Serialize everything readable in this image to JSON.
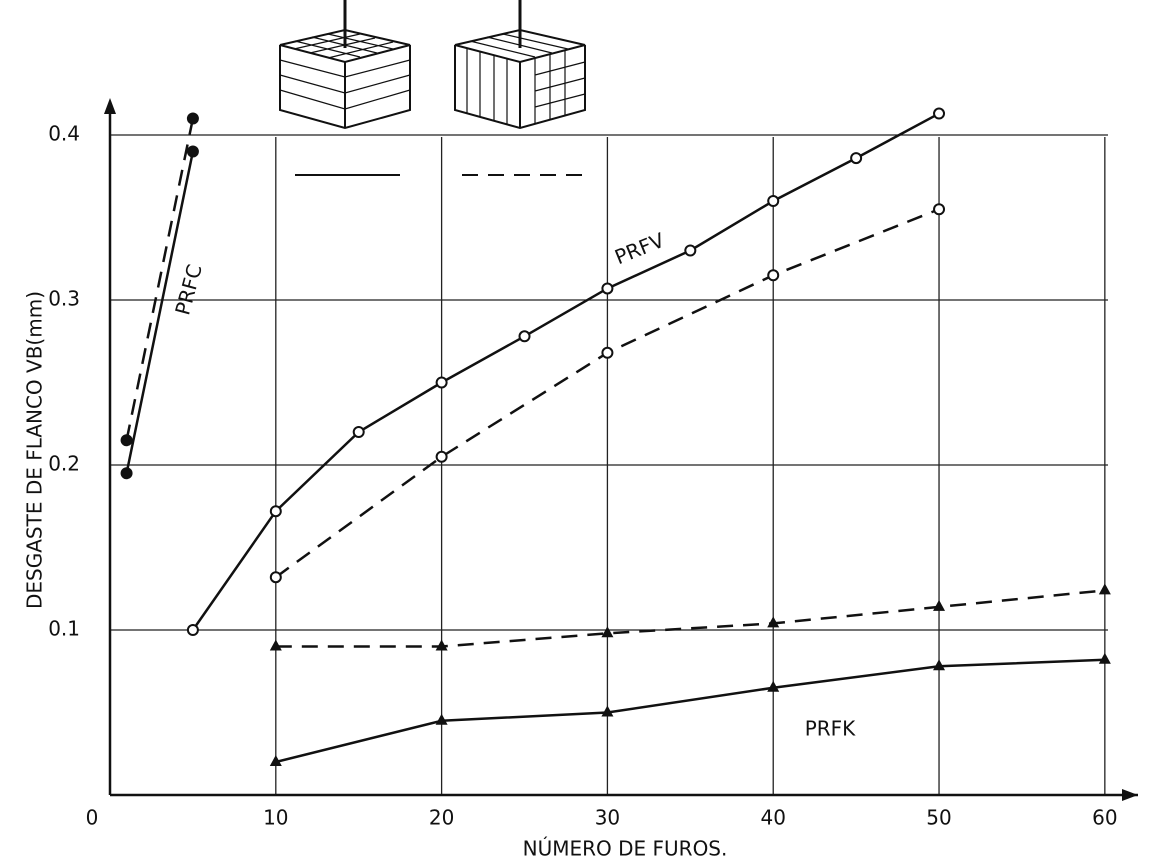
{
  "chart_data": {
    "type": "line",
    "x_label": "NÚMERO DE FUROS.",
    "y_label": "DESGASTE DE FLANCO VB(mm)",
    "xlim": [
      0,
      62
    ],
    "xticks": [
      0,
      10,
      20,
      30,
      40,
      50,
      60
    ],
    "ylim": [
      0,
      0.42
    ],
    "yticks": [
      0.1,
      0.2,
      0.3,
      0.4
    ],
    "grid": true,
    "annotations": [
      "PRFC",
      "PRFV",
      "PRFK"
    ],
    "series": [
      {
        "color": "#111111",
        "dash": false,
        "marker": "filled",
        "x": [
          1,
          5
        ],
        "values": [
          0.195,
          0.39
        ]
      },
      {
        "color": "#111111",
        "dash": true,
        "marker": "filled",
        "x": [
          1,
          5
        ],
        "values": [
          0.215,
          0.41
        ]
      },
      {
        "color": "#111111",
        "dash": false,
        "marker": "open",
        "x": [
          5,
          10,
          15,
          20,
          25,
          30,
          35,
          40,
          45,
          50
        ],
        "values": [
          0.1,
          0.172,
          0.22,
          0.25,
          0.278,
          0.307,
          0.33,
          0.36,
          0.386,
          0.413
        ]
      },
      {
        "color": "#111111",
        "dash": true,
        "marker": "open",
        "x": [
          10,
          20,
          30,
          40,
          50
        ],
        "values": [
          0.132,
          0.205,
          0.268,
          0.315,
          0.355
        ]
      },
      {
        "color": "#111111",
        "dash": true,
        "marker": "triangle",
        "x": [
          10,
          20,
          30,
          40,
          50,
          60
        ],
        "values": [
          0.09,
          0.09,
          0.098,
          0.104,
          0.114,
          0.124
        ]
      },
      {
        "color": "#111111",
        "dash": false,
        "marker": "triangle",
        "x": [
          10,
          20,
          30,
          40,
          50,
          60
        ],
        "values": [
          0.02,
          0.045,
          0.05,
          0.065,
          0.078,
          0.082
        ]
      }
    ]
  }
}
